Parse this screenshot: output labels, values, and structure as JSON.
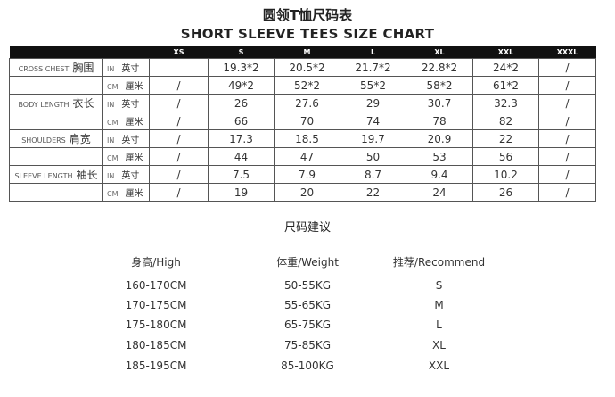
{
  "title_cn": "圆领T恤尺码表",
  "title_en": "SHORT SLEEVE TEES  SIZE CHART",
  "sizes": [
    "XS",
    "S",
    "M",
    "L",
    "XL",
    "XXL",
    "XXXL"
  ],
  "rows": [
    {
      "label_en": "CROSS CHEST",
      "label_cn": "胸围",
      "unit_en": "IN",
      "unit_cn": "英寸",
      "values": [
        "",
        "19.3*2",
        "20.5*2",
        "21.7*2",
        "22.8*2",
        "24*2",
        "/"
      ]
    },
    {
      "label_en": "",
      "label_cn": "",
      "unit_en": "CM",
      "unit_cn": "厘米",
      "values": [
        "/",
        "49*2",
        "52*2",
        "55*2",
        "58*2",
        "61*2",
        "/"
      ]
    },
    {
      "label_en": "BODY LENGTH",
      "label_cn": "衣长",
      "unit_en": "IN",
      "unit_cn": "英寸",
      "values": [
        "/",
        "26",
        "27.6",
        "29",
        "30.7",
        "32.3",
        "/"
      ]
    },
    {
      "label_en": "",
      "label_cn": "",
      "unit_en": "CM",
      "unit_cn": "厘米",
      "values": [
        "/",
        "66",
        "70",
        "74",
        "78",
        "82",
        "/"
      ]
    },
    {
      "label_en": "SHOULDERS",
      "label_cn": "肩宽",
      "unit_en": "IN",
      "unit_cn": "英寸",
      "values": [
        "/",
        "17.3",
        "18.5",
        "19.7",
        "20.9",
        "22",
        "/"
      ]
    },
    {
      "label_en": "",
      "label_cn": "",
      "unit_en": "CM",
      "unit_cn": "厘米",
      "values": [
        "/",
        "44",
        "47",
        "50",
        "53",
        "56",
        "/"
      ]
    },
    {
      "label_en": "SLEEVE LENGTH",
      "label_cn": "袖长",
      "unit_en": "IN",
      "unit_cn": "英寸",
      "values": [
        "/",
        "7.5",
        "7.9",
        "8.7",
        "9.4",
        "10.2",
        "/"
      ]
    },
    {
      "label_en": "",
      "label_cn": "",
      "unit_en": "CM",
      "unit_cn": "厘米",
      "values": [
        "/",
        "19",
        "20",
        "22",
        "24",
        "26",
        "/"
      ]
    }
  ],
  "recommend": {
    "title": "尺码建议",
    "headers": [
      "身高/High",
      "体重/Weight",
      "推荐/Recommend"
    ],
    "rows": [
      [
        "160-170CM",
        "50-55KG",
        "S"
      ],
      [
        "170-175CM",
        "55-65KG",
        "M"
      ],
      [
        "175-180CM",
        "65-75KG",
        "L"
      ],
      [
        "180-185CM",
        "75-85KG",
        "XL"
      ],
      [
        "185-195CM",
        "85-100KG",
        "XXL"
      ]
    ]
  }
}
